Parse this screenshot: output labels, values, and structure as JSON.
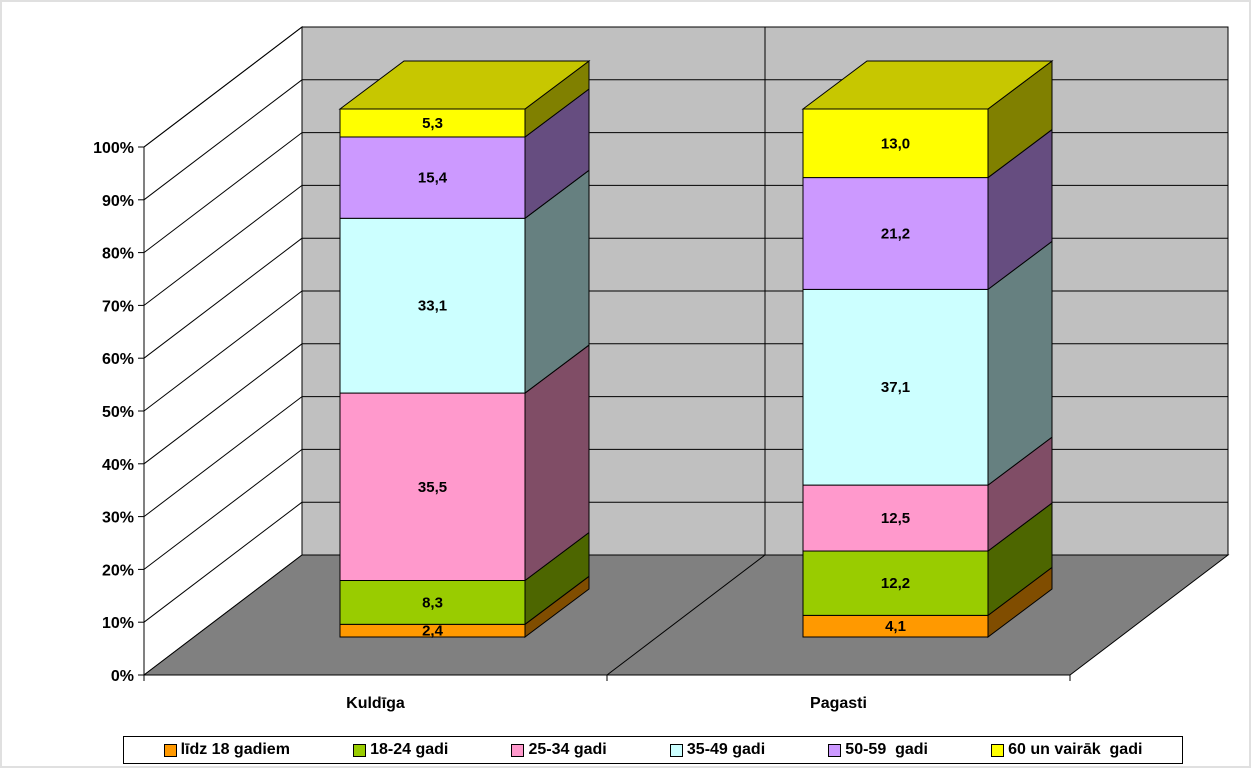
{
  "chart_data": {
    "type": "bar",
    "stacked": true,
    "percent_stacked": true,
    "three_d": true,
    "categories": [
      "Kuldīga",
      "Pagasti"
    ],
    "series": [
      {
        "name": "līdz 18 gadiem",
        "values": [
          2.4,
          4.1
        ],
        "color": "#ff9900",
        "labels": [
          "2,4",
          "4,1"
        ]
      },
      {
        "name": "18-24 gadi",
        "values": [
          8.3,
          12.2
        ],
        "color": "#99cc00",
        "labels": [
          "8,3",
          "12,2"
        ]
      },
      {
        "name": "25-34 gadi",
        "values": [
          35.5,
          12.5
        ],
        "color": "#ff99cc",
        "labels": [
          "35,5",
          "12,5"
        ]
      },
      {
        "name": "35-49 gadi",
        "values": [
          33.1,
          37.1
        ],
        "color": "#ccffff",
        "labels": [
          "33,1",
          "37,1"
        ]
      },
      {
        "name": "50-59  gadi",
        "values": [
          15.4,
          21.2
        ],
        "color": "#cc99ff",
        "labels": [
          "15,4",
          "21,2"
        ]
      },
      {
        "name": "60 un vairāk  gadi",
        "values": [
          5.3,
          13.0
        ],
        "color": "#ffff00",
        "labels": [
          "5,3",
          "13,0"
        ]
      }
    ],
    "yticks": [
      "0%",
      "10%",
      "20%",
      "30%",
      "40%",
      "50%",
      "60%",
      "70%",
      "80%",
      "90%",
      "100%"
    ],
    "ylim": [
      0,
      100
    ],
    "grid": true,
    "legend_position": "bottom",
    "wall_color": "#c0c0c0",
    "floor_color": "#808080"
  }
}
